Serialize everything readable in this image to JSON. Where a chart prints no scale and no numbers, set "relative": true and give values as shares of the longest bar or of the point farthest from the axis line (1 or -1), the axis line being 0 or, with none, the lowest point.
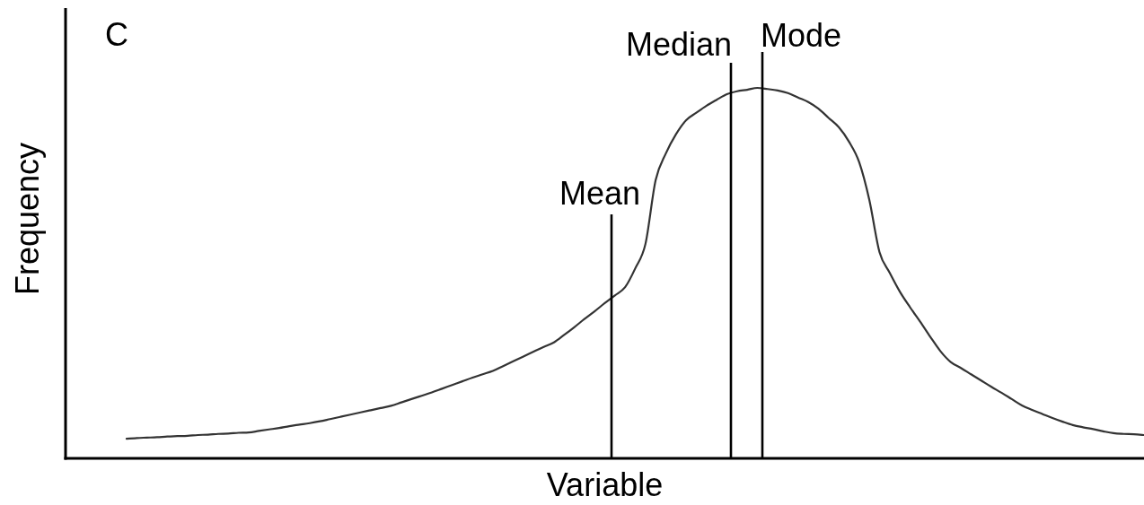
{
  "chart_data": {
    "type": "line",
    "title": "C",
    "xlabel": "Variable",
    "ylabel": "Frequency",
    "relative": true,
    "categories": [
      null,
      null,
      null,
      null,
      null,
      null,
      null,
      null,
      null,
      null,
      null,
      null,
      null,
      null,
      null,
      null,
      null,
      null,
      null,
      null,
      null,
      null,
      null,
      null,
      null,
      null,
      null,
      null,
      null,
      null,
      null,
      null,
      null,
      null,
      null,
      null,
      null,
      null,
      null,
      null,
      null,
      null,
      null,
      null,
      null,
      null,
      null,
      null,
      null,
      null,
      null,
      null,
      null,
      null,
      null,
      null,
      null,
      null,
      null,
      null,
      null,
      null,
      null,
      null,
      null,
      null,
      null,
      null,
      null,
      null,
      null,
      null,
      null,
      null,
      null,
      null,
      null,
      null,
      null,
      null,
      null,
      null,
      null,
      null,
      null,
      null,
      null,
      null,
      null,
      null,
      null,
      null,
      null,
      null,
      null,
      null,
      null,
      null,
      null,
      null,
      null,
      null,
      null,
      null,
      null,
      null,
      null
    ],
    "series": [
      {
        "color": "#333333",
        "values": [
          null,
          null,
          null,
          null,
          null,
          null,
          0.053,
          0.055,
          0.056,
          0.057,
          0.059,
          0.06,
          0.061,
          0.063,
          0.064,
          0.066,
          0.067,
          0.069,
          0.07,
          0.074,
          0.078,
          0.082,
          0.087,
          0.091,
          0.095,
          0.1,
          0.106,
          0.112,
          0.118,
          0.124,
          0.13,
          0.136,
          0.142,
          0.151,
          0.16,
          0.169,
          0.178,
          0.188,
          0.198,
          0.208,
          0.218,
          0.227,
          0.236,
          0.249,
          0.262,
          0.275,
          0.288,
          0.301,
          0.313,
          0.333,
          0.354,
          0.376,
          0.397,
          0.419,
          0.44,
          0.462,
          0.513,
          0.579,
          0.751,
          0.823,
          0.875,
          0.913,
          0.933,
          0.952,
          0.968,
          0.983,
          0.991,
          0.995,
          1,
          0.997,
          0.993,
          0.986,
          0.974,
          0.962,
          0.944,
          0.919,
          0.894,
          0.855,
          0.8,
          0.698,
          0.557,
          0.501,
          0.45,
          0.408,
          0.369,
          0.328,
          0.289,
          0.26,
          0.244,
          0.227,
          0.21,
          0.193,
          0.177,
          0.16,
          0.143,
          0.131,
          0.12,
          0.109,
          0.099,
          0.09,
          0.084,
          0.079,
          0.073,
          0.068,
          0.066,
          0.065,
          0.063
        ]
      }
    ],
    "annotations": [
      "Mean",
      "Median",
      "Mode"
    ]
  }
}
